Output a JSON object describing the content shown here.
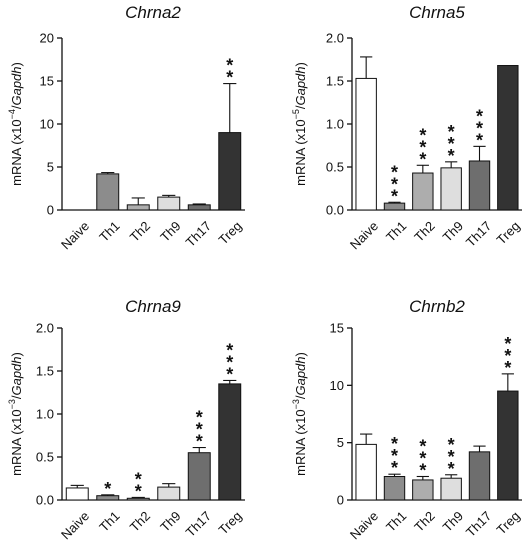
{
  "chart_data": [
    {
      "type": "bar",
      "title": "Chrna2",
      "ylabel": {
        "prefix": "mRNA (x10",
        "exp": "−4",
        "mid": "/",
        "gene": "Gapdh",
        "suffix": ")"
      },
      "ylim": [
        0,
        20
      ],
      "yticks": [
        0,
        5,
        10,
        15,
        20
      ],
      "categories": [
        "Naive",
        "Th1",
        "Th2",
        "Th9",
        "Th17",
        "Treg"
      ],
      "values": [
        0,
        4.2,
        0.6,
        1.5,
        0.6,
        9.0
      ],
      "errors": [
        0,
        0.15,
        0.8,
        0.2,
        0.1,
        5.7
      ],
      "significance": [
        "",
        "",
        "",
        "",
        "",
        "**"
      ],
      "colors": [
        "#ffffff",
        "#8c8c8c",
        "#adadad",
        "#dedede",
        "#6e6e6e",
        "#333333"
      ]
    },
    {
      "type": "bar",
      "title": "Chrna5",
      "ylabel": {
        "prefix": "mRNA (x10",
        "exp": "−5",
        "mid": "/",
        "gene": "Gapdh",
        "suffix": ")"
      },
      "ylim": [
        0,
        2.0
      ],
      "yticks": [
        "0.0",
        "0.5",
        "1.0",
        "1.5",
        "2.0"
      ],
      "categories": [
        "Naive",
        "Th1",
        "Th2",
        "Th9",
        "Th17",
        "Treg"
      ],
      "values": [
        1.53,
        0.08,
        0.43,
        0.49,
        0.57,
        1.68
      ],
      "errors": [
        0.25,
        0.01,
        0.09,
        0.07,
        0.17,
        0
      ],
      "significance": [
        "",
        "***",
        "***",
        "***",
        "***",
        ""
      ],
      "colors": [
        "#ffffff",
        "#8c8c8c",
        "#adadad",
        "#dedede",
        "#6e6e6e",
        "#333333"
      ]
    },
    {
      "type": "bar",
      "title": "Chrna9",
      "ylabel": {
        "prefix": "mRNA (x10",
        "exp": "−3",
        "mid": "/",
        "gene": "Gapdh",
        "suffix": ")"
      },
      "ylim": [
        0,
        2.0
      ],
      "yticks": [
        "0.0",
        "0.5",
        "1.0",
        "1.5",
        "2.0"
      ],
      "categories": [
        "Naive",
        "Th1",
        "Th2",
        "Th9",
        "Th17",
        "Treg"
      ],
      "values": [
        0.14,
        0.05,
        0.02,
        0.15,
        0.55,
        1.35
      ],
      "errors": [
        0.03,
        0.01,
        0.01,
        0.04,
        0.06,
        0.04
      ],
      "significance": [
        "",
        "*",
        "**",
        "",
        "***",
        "***"
      ],
      "colors": [
        "#ffffff",
        "#8c8c8c",
        "#adadad",
        "#dedede",
        "#6e6e6e",
        "#333333"
      ]
    },
    {
      "type": "bar",
      "title": "Chrnb2",
      "ylabel": {
        "prefix": "mRNA (x10",
        "exp": "−3",
        "mid": "/",
        "gene": "Gapdh",
        "suffix": ")"
      },
      "ylim": [
        0,
        15
      ],
      "yticks": [
        0,
        5,
        10,
        15
      ],
      "categories": [
        "Naive",
        "Th1",
        "Th2",
        "Th9",
        "Th17",
        "Treg"
      ],
      "values": [
        4.85,
        2.05,
        1.75,
        1.9,
        4.2,
        9.5
      ],
      "errors": [
        0.9,
        0.2,
        0.3,
        0.3,
        0.5,
        1.5
      ],
      "significance": [
        "",
        "***",
        "***",
        "***",
        "",
        "***"
      ],
      "colors": [
        "#ffffff",
        "#8c8c8c",
        "#adadad",
        "#dedede",
        "#6e6e6e",
        "#333333"
      ]
    }
  ]
}
